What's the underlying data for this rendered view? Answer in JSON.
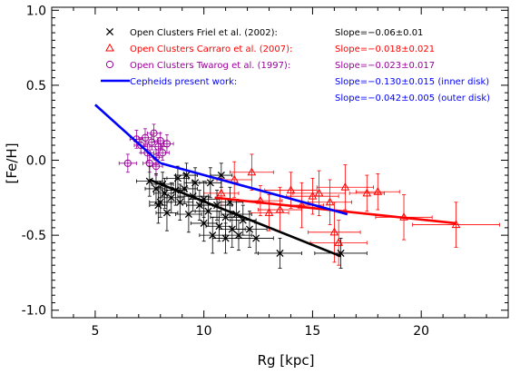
{
  "chart_data": {
    "type": "scatter",
    "title": "",
    "xlabel": "Rg [kpc]",
    "ylabel": "[Fe/H]",
    "xlim": [
      3,
      24
    ],
    "ylim": [
      -1.05,
      1.02
    ],
    "x_ticks": [
      5,
      10,
      15,
      20
    ],
    "y_ticks": [
      1.0,
      0.5,
      0.0,
      -0.5,
      -1.0
    ],
    "x_tick_labels": [
      "5",
      "10",
      "15",
      "20"
    ],
    "y_tick_labels": [
      "1.0",
      "0.5",
      "0.0",
      "-0.5",
      "-1.0"
    ],
    "grid": false,
    "legend_position": "top-left",
    "legend": [
      {
        "marker": "x",
        "color": "#000000",
        "label": "Open Clusters Friel et al. (2002):",
        "slope": "Slope=−0.06±0.01"
      },
      {
        "marker": "triangle",
        "color": "#ff0000",
        "label": "Open Clusters Carraro et al. (2007):",
        "slope": "Slope=−0.018±0.021"
      },
      {
        "marker": "circle",
        "color": "#9a009a",
        "label": "Open Clusters Twarog et al. (1997):",
        "slope": "Slope=−0.023±0.017"
      },
      {
        "marker": "line",
        "color": "#0000ff",
        "label": "Cepheids present work:",
        "slope": "Slope=−0.130±0.015 (inner disk)"
      },
      {
        "marker": "none",
        "color": "#0000ff",
        "label": "",
        "slope": "Slope=−0.042±0.005 (outer disk)"
      }
    ],
    "series": [
      {
        "name": "Open Clusters Friel et al. (2002)",
        "marker": "x",
        "color": "#000000",
        "points": [
          [
            7.5,
            -0.14,
            0.6,
            0.1
          ],
          [
            7.8,
            -0.19,
            0.5,
            0.1
          ],
          [
            7.9,
            -0.3,
            0.4,
            0.12
          ],
          [
            8.0,
            -0.28,
            0.5,
            0.1
          ],
          [
            8.1,
            -0.16,
            0.5,
            0.08
          ],
          [
            8.2,
            -0.22,
            0.5,
            0.1
          ],
          [
            8.3,
            -0.35,
            0.5,
            0.12
          ],
          [
            8.5,
            -0.25,
            0.6,
            0.1
          ],
          [
            8.7,
            -0.2,
            0.5,
            0.1
          ],
          [
            8.8,
            -0.12,
            0.5,
            0.08
          ],
          [
            8.9,
            -0.28,
            0.6,
            0.12
          ],
          [
            9.1,
            -0.19,
            0.6,
            0.1
          ],
          [
            9.2,
            -0.1,
            0.5,
            0.08
          ],
          [
            9.3,
            -0.36,
            0.6,
            0.12
          ],
          [
            9.5,
            -0.24,
            0.7,
            0.1
          ],
          [
            9.6,
            -0.15,
            0.5,
            0.1
          ],
          [
            9.8,
            -0.3,
            0.6,
            0.1
          ],
          [
            10.0,
            -0.26,
            0.7,
            0.12
          ],
          [
            10.0,
            -0.42,
            0.6,
            0.12
          ],
          [
            10.2,
            -0.34,
            0.6,
            0.1
          ],
          [
            10.3,
            -0.15,
            0.5,
            0.1
          ],
          [
            10.4,
            -0.5,
            0.6,
            0.12
          ],
          [
            10.6,
            -0.3,
            0.7,
            0.1
          ],
          [
            10.7,
            -0.44,
            0.6,
            0.1
          ],
          [
            10.8,
            -0.1,
            0.5,
            0.08
          ],
          [
            11.0,
            -0.38,
            0.7,
            0.12
          ],
          [
            11.0,
            -0.52,
            0.6,
            0.1
          ],
          [
            11.2,
            -0.28,
            0.6,
            0.1
          ],
          [
            11.3,
            -0.46,
            0.6,
            0.12
          ],
          [
            11.5,
            -0.36,
            0.7,
            0.1
          ],
          [
            11.6,
            -0.5,
            0.6,
            0.1
          ],
          [
            11.8,
            -0.4,
            0.6,
            0.1
          ],
          [
            12.1,
            -0.46,
            0.8,
            0.12
          ],
          [
            12.4,
            -0.52,
            0.8,
            0.1
          ],
          [
            13.5,
            -0.62,
            1.0,
            0.1
          ],
          [
            16.3,
            -0.62,
            1.2,
            0.1
          ]
        ]
      },
      {
        "name": "Open Clusters Carraro et al. (2007)",
        "marker": "triangle",
        "color": "#ff0000",
        "points": [
          [
            10.8,
            -0.22,
            0.8,
            0.1
          ],
          [
            11.4,
            -0.13,
            0.8,
            0.12
          ],
          [
            12.2,
            -0.08,
            1.0,
            0.12
          ],
          [
            12.6,
            -0.27,
            1.0,
            0.1
          ],
          [
            13.0,
            -0.35,
            0.9,
            0.12
          ],
          [
            13.5,
            -0.33,
            1.0,
            0.15
          ],
          [
            14.0,
            -0.2,
            1.2,
            0.12
          ],
          [
            14.5,
            -0.3,
            1.0,
            0.15
          ],
          [
            15.0,
            -0.24,
            1.2,
            0.12
          ],
          [
            15.3,
            -0.22,
            1.2,
            0.15
          ],
          [
            15.8,
            -0.28,
            1.0,
            0.15
          ],
          [
            16.0,
            -0.48,
            1.2,
            0.2
          ],
          [
            16.2,
            -0.55,
            1.3,
            0.15
          ],
          [
            16.5,
            -0.18,
            1.3,
            0.15
          ],
          [
            17.5,
            -0.22,
            0.8,
            0.12
          ],
          [
            18.0,
            -0.21,
            1.0,
            0.12
          ],
          [
            19.2,
            -0.38,
            1.3,
            0.15
          ],
          [
            21.6,
            -0.43,
            2.0,
            0.15
          ]
        ]
      },
      {
        "name": "Open Clusters Twarog et al. (1997)",
        "marker": "circle",
        "color": "#9a009a",
        "points": [
          [
            6.5,
            -0.02,
            0.4,
            0.06
          ],
          [
            6.9,
            0.14,
            0.3,
            0.06
          ],
          [
            7.1,
            0.1,
            0.3,
            0.05
          ],
          [
            7.3,
            0.15,
            0.3,
            0.06
          ],
          [
            7.4,
            0.05,
            0.3,
            0.06
          ],
          [
            7.5,
            -0.02,
            0.3,
            0.06
          ],
          [
            7.6,
            0.12,
            0.3,
            0.05
          ],
          [
            7.7,
            0.18,
            0.3,
            0.06
          ],
          [
            7.8,
            0.02,
            0.3,
            0.05
          ],
          [
            7.8,
            -0.04,
            0.3,
            0.06
          ],
          [
            7.9,
            0.09,
            0.4,
            0.06
          ],
          [
            8.0,
            0.13,
            0.3,
            0.05
          ],
          [
            8.1,
            0.05,
            0.3,
            0.05
          ],
          [
            8.3,
            0.11,
            0.3,
            0.06
          ]
        ]
      }
    ],
    "fit_lines": [
      {
        "name": "Friel fit",
        "color": "#000000",
        "x": [
          7.5,
          16.3
        ],
        "y": [
          -0.13,
          -0.64
        ]
      },
      {
        "name": "Carraro fit",
        "color": "#ff0000",
        "x": [
          10.5,
          21.6
        ],
        "y": [
          -0.25,
          -0.42
        ]
      },
      {
        "name": "Cepheids inner disk",
        "color": "#0000ff",
        "x": [
          5.0,
          8.0
        ],
        "y": [
          0.37,
          -0.02
        ]
      },
      {
        "name": "Cepheids outer disk",
        "color": "#0000ff",
        "x": [
          8.0,
          16.6
        ],
        "y": [
          -0.02,
          -0.36
        ]
      }
    ]
  }
}
